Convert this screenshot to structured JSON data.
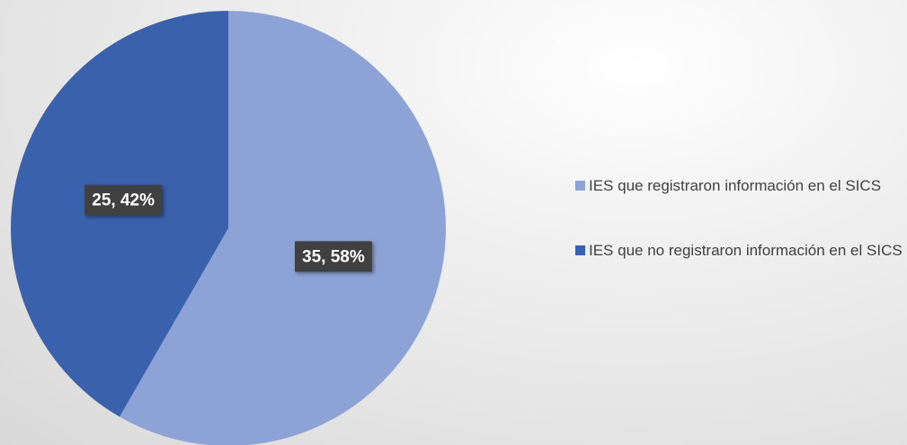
{
  "chart_data": {
    "type": "pie",
    "categories": [
      "IES que registraron información en el SICS",
      "IES que no registraron información en el SICS"
    ],
    "values": [
      35,
      25
    ],
    "value_labels": [
      "35, 58%",
      "25, 42%"
    ],
    "colors": [
      "#8ea3d5",
      "#3a61ac"
    ],
    "legend": "right"
  }
}
